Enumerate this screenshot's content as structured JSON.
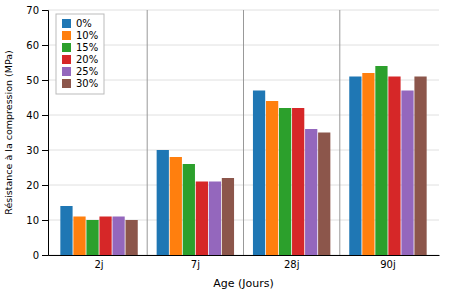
{
  "chart_data": {
    "type": "bar",
    "xlabel": "Age (Jours)",
    "ylabel": "Résistance à la compression (MPa)",
    "categories": [
      "2j",
      "7j",
      "28j",
      "90j"
    ],
    "series": [
      {
        "name": "0%",
        "values": [
          14,
          30,
          47,
          51
        ]
      },
      {
        "name": "10%",
        "values": [
          11,
          28,
          44,
          52
        ]
      },
      {
        "name": "15%",
        "values": [
          10,
          26,
          42,
          54
        ]
      },
      {
        "name": "20%",
        "values": [
          11,
          21,
          42,
          51
        ]
      },
      {
        "name": "25%",
        "values": [
          11,
          21,
          36,
          47
        ]
      },
      {
        "name": "30%",
        "values": [
          10,
          22,
          35,
          51
        ]
      }
    ],
    "ylim": [
      0,
      70
    ],
    "yticks": [
      0,
      10,
      20,
      30,
      40,
      50,
      60,
      70
    ],
    "grid": true,
    "legend": "upper left"
  }
}
